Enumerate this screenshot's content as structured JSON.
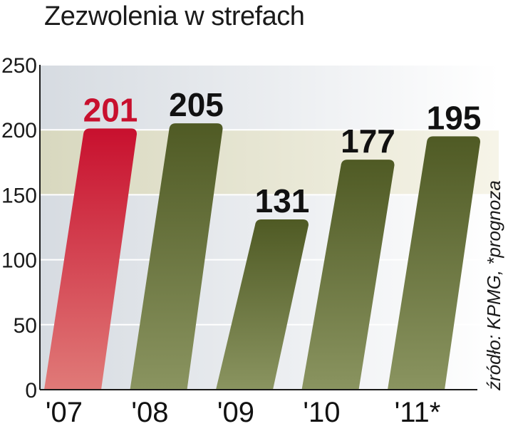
{
  "chart_data": {
    "type": "bar",
    "title": "Zezwolenia w strefach",
    "categories": [
      "'07",
      "'08",
      "'09",
      "'10",
      "'11*"
    ],
    "values": [
      201,
      205,
      131,
      177,
      195
    ],
    "value_labels": [
      "201",
      "205",
      "131",
      "177",
      "195"
    ],
    "ylim": [
      0,
      250
    ],
    "yticks": [
      "0",
      "50",
      "100",
      "150",
      "200",
      "250"
    ],
    "grid": true,
    "note": "źródło: KPMG, *prognoza",
    "colors": {
      "highlight": "#c8102e",
      "highlight_fade": "#e07a78",
      "bar": "#4f5a24",
      "bar_fade": "#8a9460",
      "band": "#e6e4cf",
      "plot_bg": "#d9dde2"
    },
    "highlight_index": 0
  }
}
